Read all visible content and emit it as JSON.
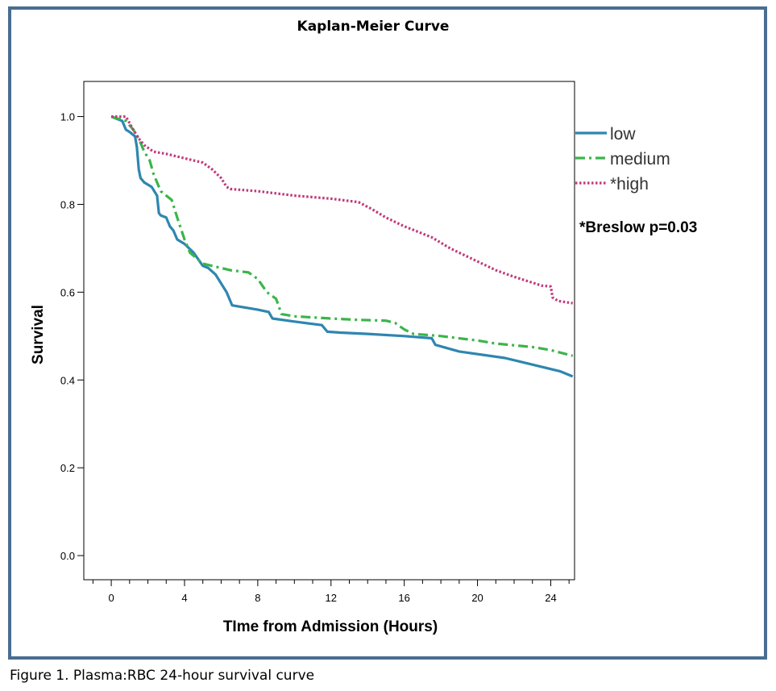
{
  "chart_data": {
    "type": "line",
    "title": "Kaplan-Meier Curve",
    "xlabel": "TIme from Admission (Hours)",
    "ylabel": "Survival",
    "xlim": [
      -1.5,
      25.3
    ],
    "ylim": [
      -0.055,
      1.08
    ],
    "xticks": [
      0,
      4,
      8,
      12,
      16,
      20,
      24
    ],
    "yticks": [
      0.0,
      0.2,
      0.4,
      0.6,
      0.8,
      1.0
    ],
    "xtick_labels": [
      "0",
      "4",
      "8",
      "12",
      "16",
      "20",
      "24"
    ],
    "ytick_labels": [
      "0.0",
      "0.2",
      "0.4",
      "0.6",
      "0.8",
      "1.0"
    ],
    "grid": false,
    "legend_position": "right",
    "annotation": "*Breslow p=0.03",
    "series": [
      {
        "name": "low",
        "color": "#2e86b0",
        "dash": "solid",
        "points": [
          [
            0,
            1.0
          ],
          [
            0.6,
            0.99
          ],
          [
            0.8,
            0.97
          ],
          [
            1.0,
            0.965
          ],
          [
            1.3,
            0.955
          ],
          [
            1.4,
            0.93
          ],
          [
            1.5,
            0.88
          ],
          [
            1.6,
            0.86
          ],
          [
            1.8,
            0.85
          ],
          [
            2.2,
            0.84
          ],
          [
            2.5,
            0.82
          ],
          [
            2.6,
            0.78
          ],
          [
            2.7,
            0.775
          ],
          [
            3.0,
            0.77
          ],
          [
            3.2,
            0.75
          ],
          [
            3.4,
            0.74
          ],
          [
            3.6,
            0.72
          ],
          [
            4.0,
            0.71
          ],
          [
            4.5,
            0.69
          ],
          [
            5.0,
            0.66
          ],
          [
            5.3,
            0.655
          ],
          [
            5.7,
            0.64
          ],
          [
            6.0,
            0.62
          ],
          [
            6.3,
            0.6
          ],
          [
            6.6,
            0.57
          ],
          [
            8.0,
            0.56
          ],
          [
            8.6,
            0.555
          ],
          [
            8.8,
            0.54
          ],
          [
            10.0,
            0.533
          ],
          [
            11.5,
            0.525
          ],
          [
            11.8,
            0.51
          ],
          [
            12.5,
            0.508
          ],
          [
            14.0,
            0.505
          ],
          [
            16.0,
            0.5
          ],
          [
            17.5,
            0.495
          ],
          [
            17.7,
            0.48
          ],
          [
            19.0,
            0.465
          ],
          [
            21.5,
            0.45
          ],
          [
            23.0,
            0.435
          ],
          [
            24.5,
            0.42
          ],
          [
            25.2,
            0.408
          ]
        ]
      },
      {
        "name": "medium",
        "color": "#3cb44b",
        "dash": "dashdot",
        "points": [
          [
            0,
            1.0
          ],
          [
            0.8,
            0.99
          ],
          [
            1.2,
            0.97
          ],
          [
            1.5,
            0.95
          ],
          [
            1.8,
            0.92
          ],
          [
            2.1,
            0.9
          ],
          [
            2.3,
            0.87
          ],
          [
            2.5,
            0.85
          ],
          [
            2.7,
            0.83
          ],
          [
            3.0,
            0.82
          ],
          [
            3.3,
            0.81
          ],
          [
            3.6,
            0.77
          ],
          [
            4.0,
            0.72
          ],
          [
            4.3,
            0.69
          ],
          [
            5.0,
            0.665
          ],
          [
            5.5,
            0.66
          ],
          [
            6.0,
            0.655
          ],
          [
            6.5,
            0.65
          ],
          [
            7.5,
            0.645
          ],
          [
            8.0,
            0.63
          ],
          [
            8.5,
            0.6
          ],
          [
            9.0,
            0.585
          ],
          [
            9.3,
            0.55
          ],
          [
            10.0,
            0.545
          ],
          [
            12.0,
            0.54
          ],
          [
            13.5,
            0.537
          ],
          [
            15.0,
            0.535
          ],
          [
            15.5,
            0.53
          ],
          [
            16.0,
            0.515
          ],
          [
            16.5,
            0.505
          ],
          [
            18.0,
            0.5
          ],
          [
            20.0,
            0.49
          ],
          [
            21.0,
            0.483
          ],
          [
            23.0,
            0.475
          ],
          [
            24.0,
            0.468
          ],
          [
            25.2,
            0.455
          ]
        ]
      },
      {
        "name": "*high",
        "color": "#c0387a",
        "dash": "dotted",
        "points": [
          [
            0,
            1.0
          ],
          [
            0.8,
            1.0
          ],
          [
            1.2,
            0.97
          ],
          [
            1.5,
            0.95
          ],
          [
            1.8,
            0.935
          ],
          [
            2.3,
            0.92
          ],
          [
            3.0,
            0.915
          ],
          [
            4.0,
            0.905
          ],
          [
            5.0,
            0.895
          ],
          [
            5.5,
            0.88
          ],
          [
            6.0,
            0.86
          ],
          [
            6.3,
            0.84
          ],
          [
            6.5,
            0.835
          ],
          [
            8.0,
            0.83
          ],
          [
            10.0,
            0.82
          ],
          [
            12.0,
            0.813
          ],
          [
            13.5,
            0.805
          ],
          [
            14.2,
            0.79
          ],
          [
            15.0,
            0.77
          ],
          [
            16.0,
            0.75
          ],
          [
            17.5,
            0.725
          ],
          [
            18.5,
            0.7
          ],
          [
            19.5,
            0.68
          ],
          [
            21.0,
            0.65
          ],
          [
            22.0,
            0.635
          ],
          [
            23.5,
            0.615
          ],
          [
            24.0,
            0.613
          ],
          [
            24.1,
            0.588
          ],
          [
            24.4,
            0.58
          ],
          [
            25.2,
            0.575
          ]
        ]
      }
    ]
  },
  "figure_caption": "Figure 1. Plasma:RBC 24-hour survival curve"
}
